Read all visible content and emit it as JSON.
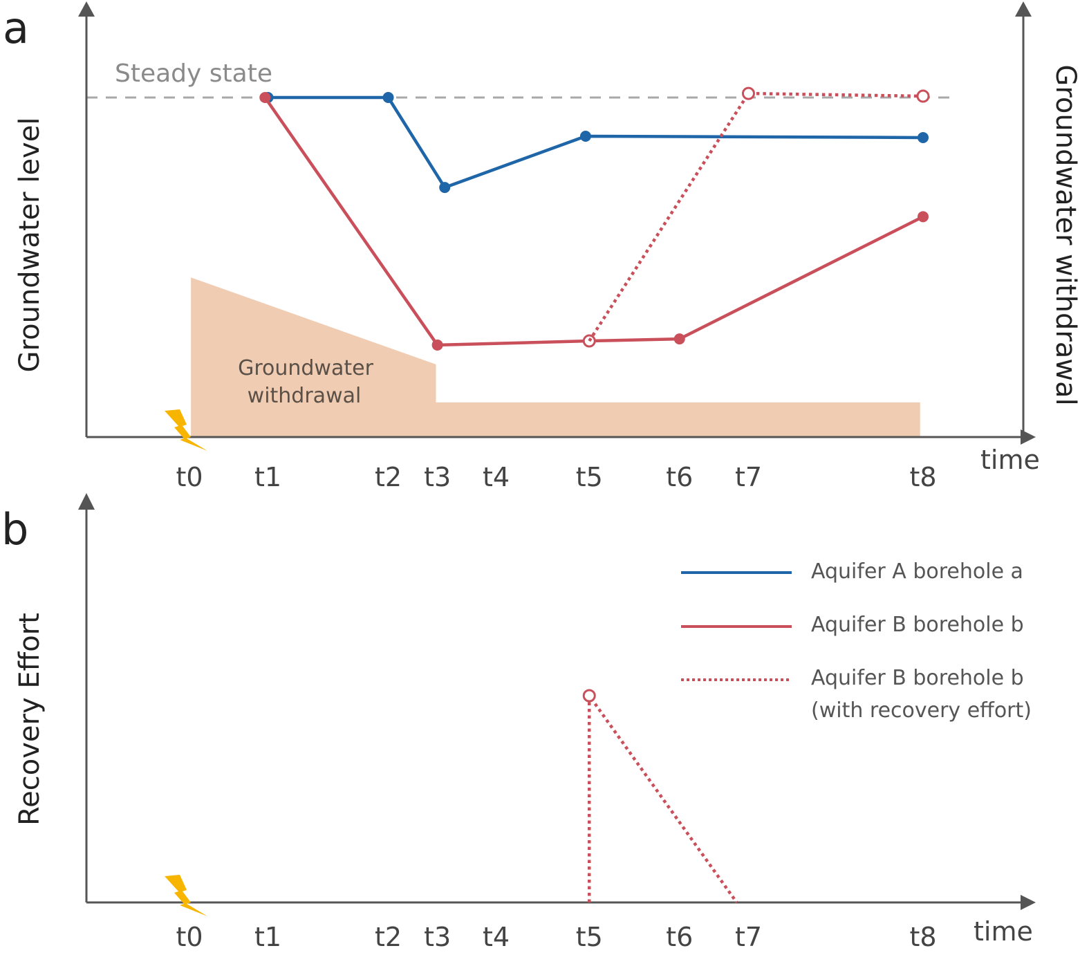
{
  "colors": {
    "axis": "#555555",
    "blue": "#1f66a8",
    "red": "#c9505a",
    "withdrawal_fill": "#f0ccb3",
    "steady": "#a8a8a8",
    "bolt": "#f7b500"
  },
  "panels": {
    "a": {
      "letter": "a",
      "y_label_left": "Groundwater level",
      "y_label_right": "Groundwater withdrawal",
      "x_label": "time"
    },
    "b": {
      "letter": "b",
      "y_label_left": "Recovery Effort",
      "x_label": "time"
    }
  },
  "chart_data": [
    {
      "type": "line",
      "panel": "a",
      "title": "",
      "xlabel": "time",
      "ylabel": "Groundwater level",
      "ylabel_right": "Groundwater withdrawal",
      "x_ticks": [
        {
          "label": "t0",
          "x": 0
        },
        {
          "label": "t1",
          "x": 10.7
        },
        {
          "label": "t2",
          "x": 27.1
        },
        {
          "label": "t3",
          "x": 33.8
        },
        {
          "label": "t4",
          "x": 41.8
        },
        {
          "label": "t5",
          "x": 54.5
        },
        {
          "label": "t6",
          "x": 66.8
        },
        {
          "label": "t7",
          "x": 76.2
        },
        {
          "label": "t8",
          "x": 100
        }
      ],
      "ylim": [
        0,
        100
      ],
      "steady_state": {
        "label": "Steady state",
        "y": 100
      },
      "series": [
        {
          "name": "Aquifer A borehole a",
          "style": "solid",
          "color_key": "blue",
          "points": [
            {
              "t": "t1",
              "x": 10.7,
              "y": 100,
              "marker": "filled"
            },
            {
              "t": "t2",
              "x": 27.1,
              "y": 100,
              "marker": "filled"
            },
            {
              "t": "t3",
              "x": 34.8,
              "y": 73.5,
              "marker": "filled"
            },
            {
              "t": "t5",
              "x": 54.0,
              "y": 88.6,
              "marker": "filled"
            },
            {
              "t": "t8",
              "x": 100,
              "y": 88.2,
              "marker": "filled"
            }
          ]
        },
        {
          "name": "Aquifer B borehole b",
          "style": "solid",
          "color_key": "red",
          "points": [
            {
              "t": "t1",
              "x": 10.3,
              "y": 100,
              "marker": "filled"
            },
            {
              "t": "t3",
              "x": 33.8,
              "y": 27.1,
              "marker": "filled"
            },
            {
              "t": "t5",
              "x": 54.5,
              "y": 28.3,
              "marker": "open"
            },
            {
              "t": "t6",
              "x": 66.8,
              "y": 28.9,
              "marker": "filled"
            },
            {
              "t": "t8",
              "x": 100,
              "y": 64.9,
              "marker": "filled"
            }
          ]
        },
        {
          "name": "Aquifer B borehole b (with recovery effort)",
          "style": "dotted",
          "color_key": "red",
          "points": [
            {
              "t": "t5",
              "x": 54.5,
              "y": 28.3,
              "marker": "none"
            },
            {
              "t": "t7",
              "x": 76.2,
              "y": 101.2,
              "marker": "open"
            },
            {
              "t": "t8",
              "x": 100,
              "y": 100.4,
              "marker": "open"
            }
          ]
        }
      ],
      "withdrawal_area": {
        "label_line1": "Groundwater",
        "label_line2": "withdrawal",
        "points": [
          {
            "x": 0.2,
            "y": 0
          },
          {
            "x": 0.2,
            "y": 47.0
          },
          {
            "x": 33.6,
            "y": 21.4
          },
          {
            "x": 33.6,
            "y": 10.2
          },
          {
            "x": 99.6,
            "y": 10.2
          },
          {
            "x": 99.6,
            "y": 0
          }
        ]
      },
      "event_marker": {
        "t": "t0",
        "icon": "lightning-bolt-icon"
      }
    },
    {
      "type": "line",
      "panel": "b",
      "title": "",
      "xlabel": "time",
      "ylabel": "Recovery Effort",
      "x_ticks": [
        {
          "label": "t0",
          "x": 0
        },
        {
          "label": "t1",
          "x": 10.7
        },
        {
          "label": "t2",
          "x": 27.1
        },
        {
          "label": "t3",
          "x": 33.8
        },
        {
          "label": "t4",
          "x": 41.8
        },
        {
          "label": "t5",
          "x": 54.5
        },
        {
          "label": "t6",
          "x": 66.8
        },
        {
          "label": "t7",
          "x": 76.2
        },
        {
          "label": "t8",
          "x": 100
        }
      ],
      "ylim": [
        0,
        100
      ],
      "series": [
        {
          "name": "Aquifer B borehole b (with recovery effort)",
          "style": "dotted",
          "color_key": "red",
          "points": [
            {
              "t": "t5",
              "x": 54.5,
              "y": 0,
              "marker": "none"
            },
            {
              "t": "t5",
              "x": 54.5,
              "y": 100,
              "marker": "open"
            },
            {
              "t": "t7",
              "x": 74.6,
              "y": 0,
              "marker": "none"
            }
          ]
        }
      ],
      "legend": {
        "position": "right",
        "entries": [
          {
            "label": "Aquifer A borehole a",
            "style": "solid",
            "color_key": "blue"
          },
          {
            "label": "Aquifer B borehole b",
            "style": "solid",
            "color_key": "red"
          },
          {
            "label": "Aquifer B borehole b",
            "label_line2": "(with recovery effort)",
            "style": "dotted",
            "color_key": "red"
          }
        ]
      },
      "event_marker": {
        "t": "t0",
        "icon": "lightning-bolt-icon"
      }
    }
  ]
}
